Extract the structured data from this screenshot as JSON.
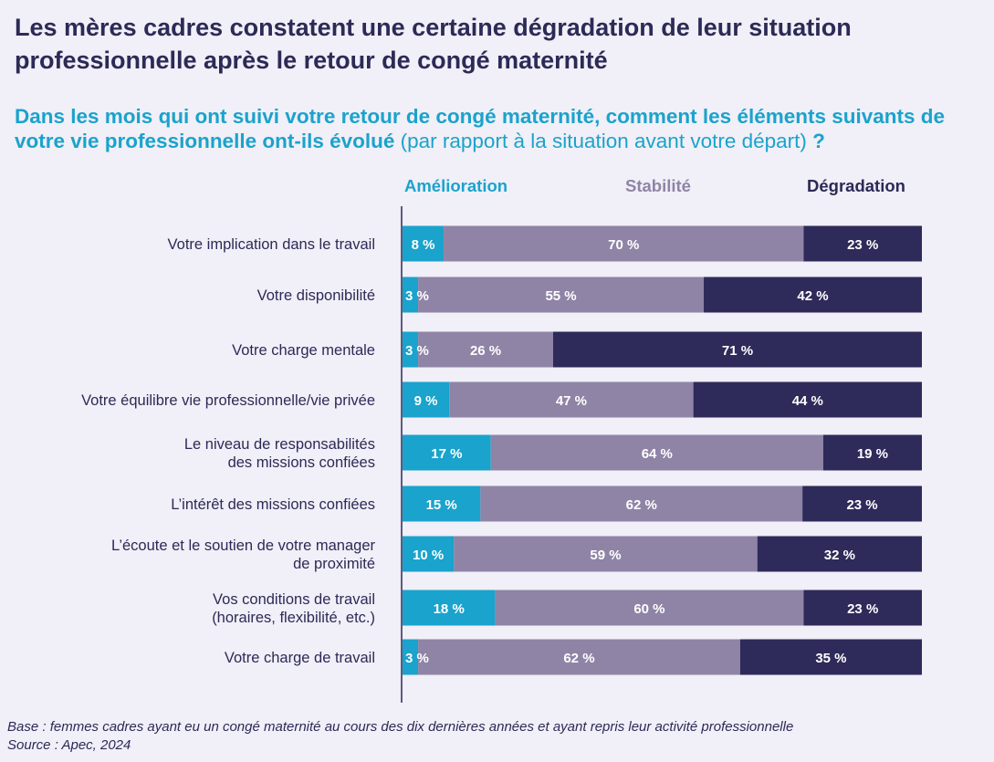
{
  "title": "Les mères cadres constatent une certaine dégradation de leur situation professionnelle après le retour de congé maternité",
  "question": {
    "main": "Dans les mois qui ont suivi votre retour de congé maternité, comment les éléments suivants de votre vie professionnelle ont-ils évolué",
    "qualifier": "(par rapport à la situation avant votre départ)",
    "mark": "?"
  },
  "colors": {
    "background": "#f1eff7",
    "amelioration": "#1aa3cc",
    "stabilite": "#8f84a6",
    "degradation": "#2e2a5a",
    "text": "#2c2a56"
  },
  "chart_data": {
    "type": "bar",
    "orientation": "horizontal",
    "stacked": true,
    "unit": "%",
    "xlim": [
      0,
      100
    ],
    "legend_position": "top",
    "grid": false,
    "categories": [
      "Votre implication dans le travail",
      "Votre disponibilité",
      "Votre charge mentale",
      "Votre équilibre vie professionnelle/vie privée",
      "Le niveau de responsabilités\ndes missions confiées",
      "L’intérêt des missions confiées",
      "L’écoute et le soutien de votre manager\nde proximité",
      "Vos conditions de travail\n(horaires, flexibilité, etc.)",
      "Votre charge de travail"
    ],
    "series": [
      {
        "name": "Amélioration",
        "values": [
          8,
          3,
          3,
          9,
          17,
          15,
          10,
          18,
          3
        ]
      },
      {
        "name": "Stabilité",
        "values": [
          70,
          55,
          26,
          47,
          64,
          62,
          59,
          60,
          62
        ]
      },
      {
        "name": "Dégradation",
        "values": [
          23,
          42,
          71,
          44,
          19,
          23,
          32,
          23,
          35
        ]
      }
    ]
  },
  "footer": {
    "base": "Base : femmes cadres ayant eu un congé maternité au cours des dix dernières années et ayant repris leur activité professionnelle",
    "source": "Source : Apec, 2024"
  }
}
